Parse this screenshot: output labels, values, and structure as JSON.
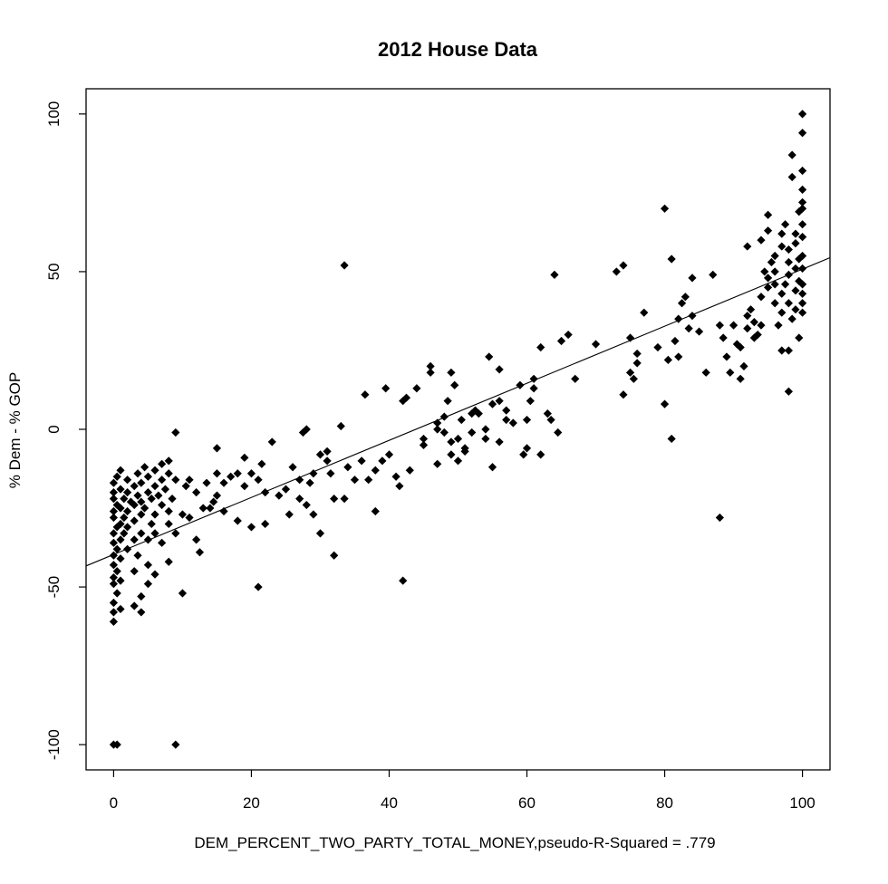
{
  "chart_data": {
    "type": "scatter",
    "title": "2012 House Data",
    "xlabel": "DEM_PERCENT_TWO_PARTY_TOTAL_MONEY,pseudo-R-Squared = .779",
    "ylabel": "% Dem - % GOP",
    "xlim": [
      -4,
      104
    ],
    "ylim": [
      -108,
      108
    ],
    "x_ticks": [
      0,
      20,
      40,
      60,
      80,
      100
    ],
    "y_ticks": [
      -100,
      -50,
      0,
      50,
      100
    ],
    "grid": false,
    "fit_line": {
      "intercept": -39.7,
      "slope": 0.905,
      "x_range": [
        -4,
        104
      ]
    },
    "points": [
      [
        0,
        -100
      ],
      [
        0.5,
        -100
      ],
      [
        9,
        -100
      ],
      [
        0,
        -61
      ],
      [
        0,
        -58
      ],
      [
        0,
        -55
      ],
      [
        0.5,
        -52
      ],
      [
        0,
        -49
      ],
      [
        0,
        -47
      ],
      [
        0.5,
        -45
      ],
      [
        0,
        -43
      ],
      [
        0,
        -40
      ],
      [
        0.5,
        -38
      ],
      [
        0,
        -36
      ],
      [
        0,
        -33
      ],
      [
        0.5,
        -31
      ],
      [
        0,
        -28
      ],
      [
        0,
        -26
      ],
      [
        0.5,
        -24
      ],
      [
        0,
        -22
      ],
      [
        0,
        -20
      ],
      [
        0,
        -17
      ],
      [
        0.5,
        -15
      ],
      [
        1,
        -13
      ],
      [
        1,
        -19
      ],
      [
        1,
        -25
      ],
      [
        1,
        -30
      ],
      [
        1,
        -35
      ],
      [
        1,
        -41
      ],
      [
        1,
        -48
      ],
      [
        1,
        -57
      ],
      [
        1.5,
        -22
      ],
      [
        1.5,
        -28
      ],
      [
        1.5,
        -33
      ],
      [
        2,
        -16
      ],
      [
        2,
        -20
      ],
      [
        2,
        -26
      ],
      [
        2,
        -31
      ],
      [
        2,
        -38
      ],
      [
        2.5,
        -23
      ],
      [
        3,
        -18
      ],
      [
        3,
        -24
      ],
      [
        3,
        -29
      ],
      [
        3,
        -35
      ],
      [
        3,
        -45
      ],
      [
        3,
        -56
      ],
      [
        3.5,
        -14
      ],
      [
        3.5,
        -21
      ],
      [
        3.5,
        -40
      ],
      [
        4,
        -17
      ],
      [
        4,
        -23
      ],
      [
        4,
        -27
      ],
      [
        4,
        -33
      ],
      [
        4,
        -53
      ],
      [
        4,
        -58
      ],
      [
        4.5,
        -12
      ],
      [
        4.5,
        -25
      ],
      [
        5,
        -20
      ],
      [
        5,
        -15
      ],
      [
        5,
        -35
      ],
      [
        5,
        -43
      ],
      [
        5,
        -49
      ],
      [
        5.5,
        -22
      ],
      [
        5.5,
        -30
      ],
      [
        6,
        -13
      ],
      [
        6,
        -18
      ],
      [
        6,
        -27
      ],
      [
        6,
        -33
      ],
      [
        6,
        -46
      ],
      [
        6.5,
        -21
      ],
      [
        7,
        -11
      ],
      [
        7,
        -16
      ],
      [
        7,
        -24
      ],
      [
        7,
        -36
      ],
      [
        7.5,
        -19
      ],
      [
        8,
        -10
      ],
      [
        8,
        -14
      ],
      [
        8,
        -26
      ],
      [
        8,
        -30
      ],
      [
        8,
        -42
      ],
      [
        8.5,
        -22
      ],
      [
        9,
        -1
      ],
      [
        9,
        -16
      ],
      [
        9,
        -33
      ],
      [
        10,
        -27
      ],
      [
        10,
        -52
      ],
      [
        10.5,
        -18
      ],
      [
        11,
        -16
      ],
      [
        11,
        -28
      ],
      [
        12,
        -20
      ],
      [
        12,
        -35
      ],
      [
        12.5,
        -39
      ],
      [
        13,
        -25
      ],
      [
        13.5,
        -17
      ],
      [
        14,
        -25
      ],
      [
        14.5,
        -23
      ],
      [
        15,
        -6
      ],
      [
        15,
        -14
      ],
      [
        15,
        -21
      ],
      [
        16,
        -17
      ],
      [
        16,
        -26
      ],
      [
        17,
        -15
      ],
      [
        18,
        -14
      ],
      [
        18,
        -29
      ],
      [
        19,
        -9
      ],
      [
        19,
        -18
      ],
      [
        20,
        -14
      ],
      [
        20,
        -31
      ],
      [
        21,
        -16
      ],
      [
        21,
        -50
      ],
      [
        21.5,
        -11
      ],
      [
        22,
        -20
      ],
      [
        22,
        -30
      ],
      [
        23,
        -4
      ],
      [
        24,
        -21
      ],
      [
        25,
        -19
      ],
      [
        25.5,
        -27
      ],
      [
        26,
        -12
      ],
      [
        27,
        -16
      ],
      [
        27,
        -22
      ],
      [
        27.5,
        -1
      ],
      [
        28,
        0
      ],
      [
        28,
        -24
      ],
      [
        28.5,
        -17
      ],
      [
        29,
        -14
      ],
      [
        29,
        -27
      ],
      [
        30,
        -8
      ],
      [
        30,
        -33
      ],
      [
        31,
        -10
      ],
      [
        31,
        -7
      ],
      [
        31.5,
        -14
      ],
      [
        32,
        -22
      ],
      [
        32,
        -40
      ],
      [
        33,
        1
      ],
      [
        33.5,
        52
      ],
      [
        33.5,
        -22
      ],
      [
        34,
        -12
      ],
      [
        35,
        -16
      ],
      [
        36,
        -10
      ],
      [
        36.5,
        11
      ],
      [
        37,
        -16
      ],
      [
        38,
        -13
      ],
      [
        38,
        -26
      ],
      [
        39,
        -10
      ],
      [
        39.5,
        13
      ],
      [
        40,
        -8
      ],
      [
        41,
        -15
      ],
      [
        41.5,
        -18
      ],
      [
        42,
        9
      ],
      [
        42,
        -48
      ],
      [
        42.5,
        10
      ],
      [
        43,
        -13
      ],
      [
        44,
        13
      ],
      [
        45,
        -3
      ],
      [
        45,
        -5
      ],
      [
        46,
        18
      ],
      [
        46,
        20
      ],
      [
        47,
        -11
      ],
      [
        47,
        0
      ],
      [
        47,
        2
      ],
      [
        48,
        -1
      ],
      [
        48,
        4
      ],
      [
        48.5,
        9
      ],
      [
        49,
        -4
      ],
      [
        49,
        -8
      ],
      [
        49,
        18
      ],
      [
        49.5,
        14
      ],
      [
        50,
        -10
      ],
      [
        50,
        -3
      ],
      [
        50.5,
        3
      ],
      [
        51,
        -6
      ],
      [
        51,
        -7
      ],
      [
        52,
        -1
      ],
      [
        52,
        5
      ],
      [
        52.5,
        6
      ],
      [
        53,
        5
      ],
      [
        54,
        0
      ],
      [
        54,
        -3
      ],
      [
        54.5,
        23
      ],
      [
        55,
        8
      ],
      [
        55,
        -12
      ],
      [
        56,
        9
      ],
      [
        56,
        -4
      ],
      [
        56,
        19
      ],
      [
        57,
        6
      ],
      [
        57,
        3
      ],
      [
        58,
        2
      ],
      [
        59,
        14
      ],
      [
        59.5,
        -8
      ],
      [
        60,
        -6
      ],
      [
        60,
        3
      ],
      [
        60.5,
        9
      ],
      [
        61,
        13
      ],
      [
        61,
        16
      ],
      [
        62,
        26
      ],
      [
        62,
        -8
      ],
      [
        63,
        5
      ],
      [
        63.5,
        3
      ],
      [
        64,
        49
      ],
      [
        64.5,
        -1
      ],
      [
        65,
        28
      ],
      [
        66,
        30
      ],
      [
        67,
        16
      ],
      [
        70,
        27
      ],
      [
        73,
        50
      ],
      [
        74,
        11
      ],
      [
        74,
        52
      ],
      [
        75,
        29
      ],
      [
        75,
        18
      ],
      [
        75.5,
        16
      ],
      [
        76,
        21
      ],
      [
        76,
        24
      ],
      [
        77,
        37
      ],
      [
        79,
        26
      ],
      [
        80,
        8
      ],
      [
        80,
        70
      ],
      [
        80.5,
        22
      ],
      [
        81,
        54
      ],
      [
        81,
        -3
      ],
      [
        81.5,
        28
      ],
      [
        82,
        35
      ],
      [
        82,
        23
      ],
      [
        82.5,
        40
      ],
      [
        83,
        42
      ],
      [
        83.5,
        32
      ],
      [
        84,
        48
      ],
      [
        84,
        36
      ],
      [
        85,
        31
      ],
      [
        86,
        18
      ],
      [
        87,
        49
      ],
      [
        88,
        33
      ],
      [
        88,
        -28
      ],
      [
        88.5,
        29
      ],
      [
        89,
        23
      ],
      [
        89.5,
        18
      ],
      [
        90,
        33
      ],
      [
        90.5,
        27
      ],
      [
        91,
        26
      ],
      [
        91,
        16
      ],
      [
        91.5,
        20
      ],
      [
        92,
        32
      ],
      [
        92,
        36
      ],
      [
        92,
        58
      ],
      [
        92.5,
        38
      ],
      [
        93,
        34
      ],
      [
        93,
        29
      ],
      [
        93.5,
        30
      ],
      [
        94,
        42
      ],
      [
        94,
        33
      ],
      [
        94,
        60
      ],
      [
        94.5,
        50
      ],
      [
        95,
        45
      ],
      [
        95,
        48
      ],
      [
        95,
        63
      ],
      [
        95,
        68
      ],
      [
        95.5,
        53
      ],
      [
        96,
        40
      ],
      [
        96,
        46
      ],
      [
        96,
        50
      ],
      [
        96,
        55
      ],
      [
        96.5,
        33
      ],
      [
        97,
        25
      ],
      [
        97,
        37
      ],
      [
        97,
        43
      ],
      [
        97,
        58
      ],
      [
        97,
        62
      ],
      [
        97.5,
        46
      ],
      [
        97.5,
        65
      ],
      [
        98,
        12
      ],
      [
        98,
        25
      ],
      [
        98,
        40
      ],
      [
        98,
        49
      ],
      [
        98,
        53
      ],
      [
        98,
        57
      ],
      [
        98.5,
        35
      ],
      [
        98.5,
        80
      ],
      [
        98.5,
        87
      ],
      [
        99,
        38
      ],
      [
        99,
        44
      ],
      [
        99,
        51
      ],
      [
        99,
        59
      ],
      [
        99,
        62
      ],
      [
        99.5,
        29
      ],
      [
        99.5,
        47
      ],
      [
        99.5,
        54
      ],
      [
        99.5,
        69
      ],
      [
        100,
        37
      ],
      [
        100,
        40
      ],
      [
        100,
        43
      ],
      [
        100,
        46
      ],
      [
        100,
        51
      ],
      [
        100,
        55
      ],
      [
        100,
        61
      ],
      [
        100,
        65
      ],
      [
        100,
        70
      ],
      [
        100,
        72
      ],
      [
        100,
        76
      ],
      [
        100,
        82
      ],
      [
        100,
        94
      ],
      [
        100,
        100
      ]
    ]
  }
}
